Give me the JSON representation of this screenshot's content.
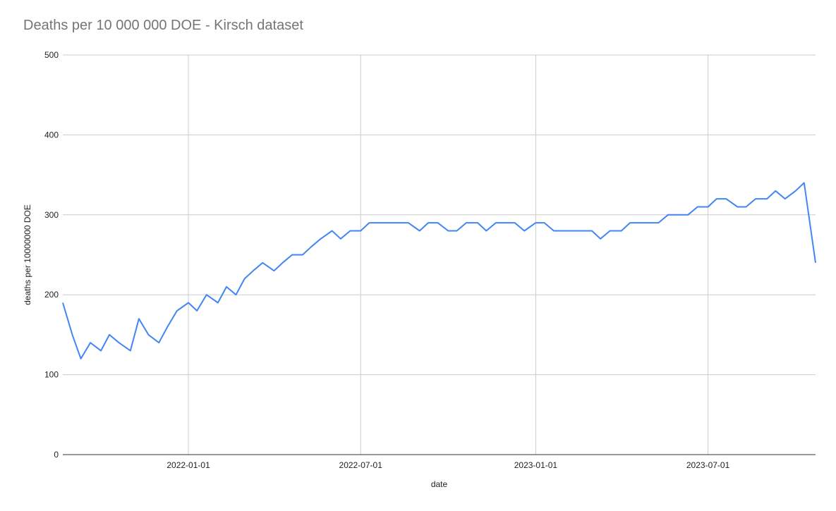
{
  "chart_data": {
    "type": "line",
    "title": "Deaths per 10 000 000 DOE - Kirsch dataset",
    "xlabel": "date",
    "ylabel": "deaths per 10000000 DOE",
    "x_start": "2021-08-22",
    "x_end": "2023-10-22",
    "x_ticks": [
      "2022-01-01",
      "2022-07-01",
      "2023-01-01",
      "2023-07-01"
    ],
    "y_ticks": [
      0,
      100,
      200,
      300,
      400,
      500
    ],
    "ylim": [
      0,
      500
    ],
    "grid": true,
    "legend": "none",
    "color": "#4285f4",
    "series": [
      {
        "dates": [
          "2021-08-22",
          "2021-09-01",
          "2021-09-10",
          "2021-09-20",
          "2021-10-01",
          "2021-10-10",
          "2021-10-20",
          "2021-11-01",
          "2021-11-10",
          "2021-11-20",
          "2021-12-01",
          "2021-12-10",
          "2021-12-20",
          "2022-01-01",
          "2022-01-10",
          "2022-01-20",
          "2022-02-01",
          "2022-02-10",
          "2022-02-20",
          "2022-03-01",
          "2022-03-10",
          "2022-03-20",
          "2022-04-01",
          "2022-04-10",
          "2022-04-20",
          "2022-05-01",
          "2022-05-10",
          "2022-05-20",
          "2022-06-01",
          "2022-06-10",
          "2022-06-20",
          "2022-07-01",
          "2022-07-10",
          "2022-07-20",
          "2022-08-01",
          "2022-08-10",
          "2022-08-20",
          "2022-09-01",
          "2022-09-10",
          "2022-09-20",
          "2022-10-01",
          "2022-10-10",
          "2022-10-20",
          "2022-11-01",
          "2022-11-10",
          "2022-11-20",
          "2022-12-01",
          "2022-12-10",
          "2022-12-20",
          "2023-01-01",
          "2023-01-10",
          "2023-01-20",
          "2023-02-01",
          "2023-02-10",
          "2023-02-20",
          "2023-03-01",
          "2023-03-10",
          "2023-03-20",
          "2023-04-01",
          "2023-04-10",
          "2023-04-20",
          "2023-05-01",
          "2023-05-10",
          "2023-05-20",
          "2023-06-01",
          "2023-06-10",
          "2023-06-20",
          "2023-07-01",
          "2023-07-10",
          "2023-07-20",
          "2023-08-01",
          "2023-08-10",
          "2023-08-20",
          "2023-09-01",
          "2023-09-10",
          "2023-09-20",
          "2023-10-01",
          "2023-10-10",
          "2023-10-22"
        ],
        "values": [
          190,
          150,
          120,
          140,
          130,
          150,
          140,
          130,
          170,
          150,
          140,
          160,
          180,
          190,
          180,
          200,
          190,
          210,
          200,
          220,
          230,
          240,
          230,
          240,
          250,
          250,
          260,
          270,
          280,
          270,
          280,
          280,
          290,
          290,
          290,
          290,
          290,
          280,
          290,
          290,
          280,
          280,
          290,
          290,
          280,
          290,
          290,
          290,
          280,
          290,
          290,
          280,
          280,
          280,
          280,
          280,
          270,
          280,
          280,
          290,
          290,
          290,
          290,
          300,
          300,
          300,
          310,
          310,
          320,
          320,
          310,
          310,
          320,
          320,
          330,
          320,
          330,
          340,
          240
        ]
      }
    ]
  }
}
